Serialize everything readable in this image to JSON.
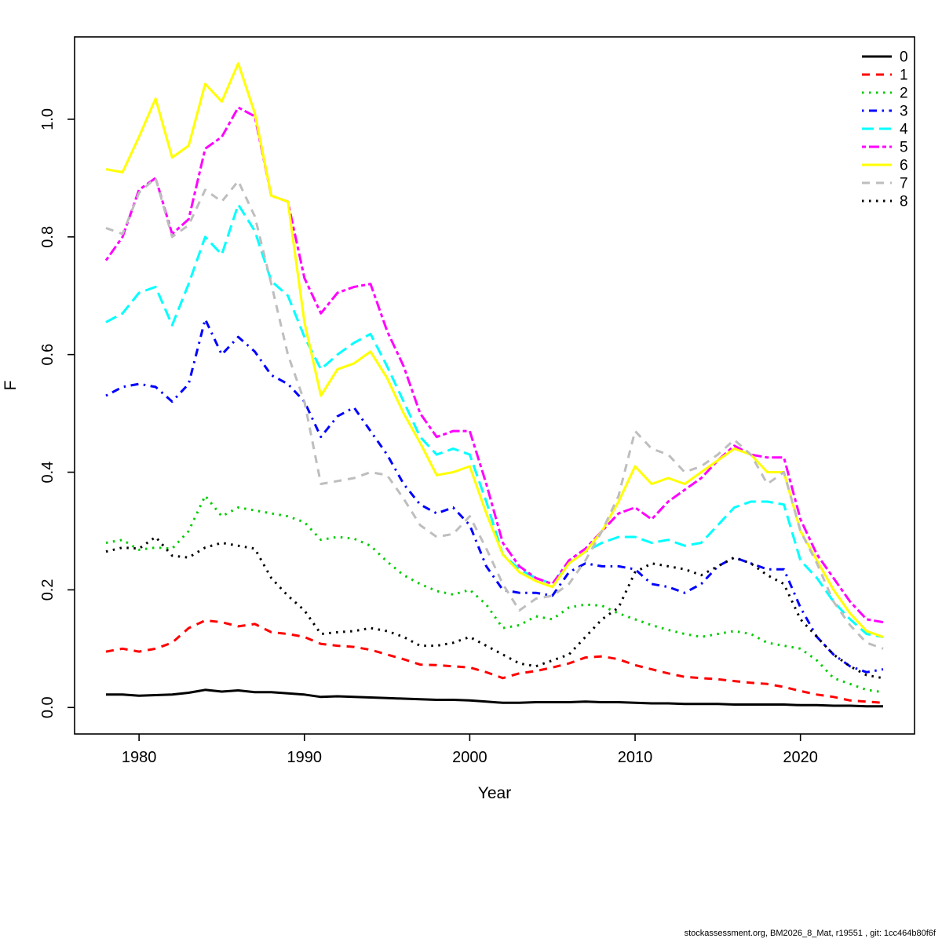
{
  "figure": {
    "footer": "stockassessment.org, BM2026_8_Mat, r19551 , git: 1cc464b80f6f"
  },
  "chart_data": {
    "type": "line",
    "title": "",
    "xlabel": "Year",
    "ylabel": "F",
    "legend_position": "top-right",
    "grid": false,
    "xlim": [
      1976.1,
      2026.9
    ],
    "ylim": [
      -0.045,
      1.14
    ],
    "x_ticks": [
      1980,
      1990,
      2000,
      2010,
      2020
    ],
    "y_ticks": [
      "0.0",
      "0.2",
      "0.4",
      "0.6",
      "0.8",
      "1.0"
    ],
    "x": [
      1978,
      1979,
      1980,
      1981,
      1982,
      1983,
      1984,
      1985,
      1986,
      1987,
      1988,
      1989,
      1990,
      1991,
      1992,
      1993,
      1994,
      1995,
      1996,
      1997,
      1998,
      1999,
      2000,
      2001,
      2002,
      2003,
      2004,
      2005,
      2006,
      2007,
      2008,
      2009,
      2010,
      2011,
      2012,
      2013,
      2014,
      2015,
      2016,
      2017,
      2018,
      2019,
      2020,
      2021,
      2022,
      2023,
      2024,
      2025
    ],
    "series": [
      {
        "name": "0",
        "color": "#000000",
        "linestyle": "solid",
        "values": [
          0.022,
          0.022,
          0.02,
          0.021,
          0.022,
          0.025,
          0.03,
          0.027,
          0.029,
          0.026,
          0.026,
          0.024,
          0.022,
          0.018,
          0.019,
          0.018,
          0.017,
          0.016,
          0.015,
          0.014,
          0.013,
          0.013,
          0.012,
          0.01,
          0.008,
          0.008,
          0.009,
          0.009,
          0.009,
          0.01,
          0.009,
          0.009,
          0.008,
          0.007,
          0.007,
          0.006,
          0.006,
          0.006,
          0.005,
          0.005,
          0.005,
          0.005,
          0.004,
          0.004,
          0.003,
          0.003,
          0.002,
          0.002
        ]
      },
      {
        "name": "1",
        "color": "#FF0000",
        "linestyle": "dashed",
        "values": [
          0.095,
          0.1,
          0.095,
          0.1,
          0.11,
          0.135,
          0.148,
          0.145,
          0.138,
          0.142,
          0.128,
          0.125,
          0.12,
          0.108,
          0.105,
          0.103,
          0.098,
          0.09,
          0.082,
          0.073,
          0.072,
          0.07,
          0.068,
          0.06,
          0.05,
          0.058,
          0.062,
          0.068,
          0.075,
          0.085,
          0.087,
          0.082,
          0.072,
          0.065,
          0.058,
          0.052,
          0.05,
          0.048,
          0.045,
          0.042,
          0.04,
          0.035,
          0.028,
          0.022,
          0.018,
          0.012,
          0.01,
          0.008
        ]
      },
      {
        "name": "2",
        "color": "#00CD00",
        "linestyle": "dotted",
        "values": [
          0.28,
          0.285,
          0.268,
          0.272,
          0.27,
          0.3,
          0.36,
          0.325,
          0.34,
          0.335,
          0.33,
          0.325,
          0.315,
          0.285,
          0.29,
          0.287,
          0.275,
          0.248,
          0.225,
          0.21,
          0.198,
          0.192,
          0.2,
          0.175,
          0.135,
          0.14,
          0.155,
          0.15,
          0.17,
          0.175,
          0.173,
          0.16,
          0.15,
          0.14,
          0.132,
          0.125,
          0.12,
          0.125,
          0.13,
          0.125,
          0.11,
          0.105,
          0.1,
          0.08,
          0.05,
          0.04,
          0.03,
          0.026
        ]
      },
      {
        "name": "3",
        "color": "#0000FF",
        "linestyle": "dotdash",
        "values": [
          0.53,
          0.545,
          0.55,
          0.545,
          0.52,
          0.55,
          0.66,
          0.6,
          0.63,
          0.605,
          0.565,
          0.55,
          0.52,
          0.46,
          0.495,
          0.51,
          0.47,
          0.43,
          0.38,
          0.345,
          0.33,
          0.34,
          0.31,
          0.24,
          0.2,
          0.195,
          0.195,
          0.19,
          0.23,
          0.245,
          0.24,
          0.24,
          0.235,
          0.21,
          0.205,
          0.195,
          0.21,
          0.24,
          0.255,
          0.245,
          0.235,
          0.235,
          0.17,
          0.12,
          0.09,
          0.07,
          0.06,
          0.065
        ]
      },
      {
        "name": "4",
        "color": "#00FFFF",
        "linestyle": "longdash",
        "values": [
          0.655,
          0.67,
          0.705,
          0.715,
          0.65,
          0.72,
          0.8,
          0.77,
          0.855,
          0.81,
          0.725,
          0.7,
          0.63,
          0.575,
          0.6,
          0.62,
          0.635,
          0.58,
          0.52,
          0.46,
          0.43,
          0.44,
          0.43,
          0.35,
          0.26,
          0.235,
          0.22,
          0.21,
          0.245,
          0.265,
          0.28,
          0.29,
          0.29,
          0.28,
          0.285,
          0.275,
          0.28,
          0.31,
          0.34,
          0.35,
          0.35,
          0.345,
          0.25,
          0.22,
          0.18,
          0.15,
          0.125,
          0.12
        ]
      },
      {
        "name": "5",
        "color": "#FF00FF",
        "linestyle": "twodash",
        "values": [
          0.76,
          0.8,
          0.88,
          0.9,
          0.805,
          0.83,
          0.95,
          0.97,
          1.02,
          1.005,
          0.87,
          0.86,
          0.73,
          0.67,
          0.705,
          0.715,
          0.72,
          0.64,
          0.58,
          0.5,
          0.46,
          0.47,
          0.47,
          0.38,
          0.28,
          0.24,
          0.22,
          0.21,
          0.25,
          0.27,
          0.3,
          0.33,
          0.34,
          0.32,
          0.35,
          0.37,
          0.39,
          0.42,
          0.445,
          0.43,
          0.425,
          0.425,
          0.32,
          0.26,
          0.22,
          0.18,
          0.15,
          0.145
        ]
      },
      {
        "name": "6",
        "color": "#FFFF00",
        "linestyle": "solid",
        "values": [
          0.915,
          0.91,
          0.97,
          1.035,
          0.935,
          0.955,
          1.06,
          1.03,
          1.095,
          1.01,
          0.87,
          0.86,
          0.655,
          0.53,
          0.575,
          0.585,
          0.605,
          0.56,
          0.5,
          0.45,
          0.395,
          0.4,
          0.41,
          0.33,
          0.26,
          0.23,
          0.215,
          0.205,
          0.245,
          0.265,
          0.3,
          0.35,
          0.41,
          0.38,
          0.39,
          0.38,
          0.4,
          0.42,
          0.44,
          0.43,
          0.4,
          0.4,
          0.3,
          0.25,
          0.2,
          0.16,
          0.13,
          0.12
        ]
      },
      {
        "name": "7",
        "color": "#BEBEBE",
        "linestyle": "dashed",
        "values": [
          0.815,
          0.805,
          0.875,
          0.9,
          0.8,
          0.82,
          0.88,
          0.86,
          0.895,
          0.835,
          0.72,
          0.6,
          0.52,
          0.38,
          0.385,
          0.39,
          0.4,
          0.395,
          0.355,
          0.31,
          0.29,
          0.295,
          0.325,
          0.27,
          0.21,
          0.165,
          0.185,
          0.19,
          0.21,
          0.25,
          0.3,
          0.36,
          0.47,
          0.44,
          0.43,
          0.4,
          0.41,
          0.43,
          0.455,
          0.43,
          0.38,
          0.4,
          0.3,
          0.245,
          0.18,
          0.14,
          0.11,
          0.1
        ]
      },
      {
        "name": "8",
        "color": "#000000",
        "linestyle": "dotted",
        "values": [
          0.265,
          0.272,
          0.27,
          0.29,
          0.258,
          0.255,
          0.272,
          0.28,
          0.275,
          0.27,
          0.22,
          0.19,
          0.165,
          0.125,
          0.128,
          0.13,
          0.135,
          0.13,
          0.12,
          0.105,
          0.105,
          0.11,
          0.12,
          0.105,
          0.09,
          0.075,
          0.07,
          0.08,
          0.09,
          0.12,
          0.15,
          0.17,
          0.23,
          0.245,
          0.24,
          0.235,
          0.225,
          0.24,
          0.255,
          0.245,
          0.225,
          0.21,
          0.15,
          0.12,
          0.09,
          0.07,
          0.055,
          0.05
        ]
      }
    ]
  }
}
